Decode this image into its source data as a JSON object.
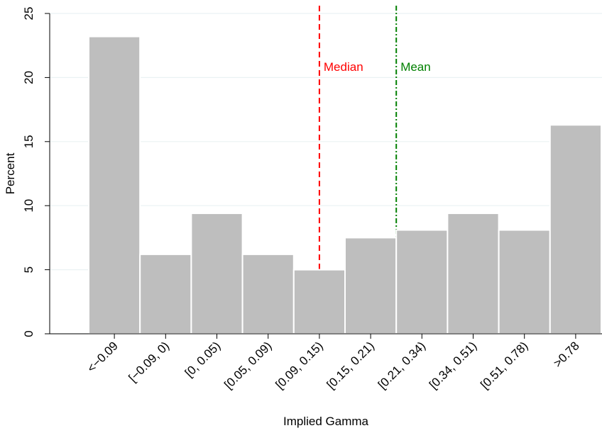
{
  "chart_data": {
    "type": "bar",
    "categories": [
      "<−0.09",
      "[−0.09, 0)",
      "[0, 0.05)",
      "[0.05, 0.09)",
      "[0.09, 0.15)",
      "[0.15, 0.21)",
      "[0.21, 0.34)",
      "[0.34, 0.51)",
      "[0.51, 0.78)",
      ">0.78"
    ],
    "values": [
      23.2,
      6.2,
      9.4,
      6.2,
      5.0,
      7.5,
      8.1,
      9.4,
      8.1,
      16.3
    ],
    "color": "#bebebe",
    "x_label": "Implied Gamma",
    "y_label": "Percent",
    "ylim": [
      0,
      25
    ],
    "yticks": [
      0,
      5,
      10,
      15,
      20,
      25
    ],
    "grid": true,
    "reference_lines": [
      {
        "label": "Median",
        "x": 4,
        "color": "#ff0000",
        "dash": "8,5"
      },
      {
        "label": "Mean",
        "x": 5.5,
        "color": "#008000",
        "dash": "7,3,2,3"
      }
    ]
  }
}
